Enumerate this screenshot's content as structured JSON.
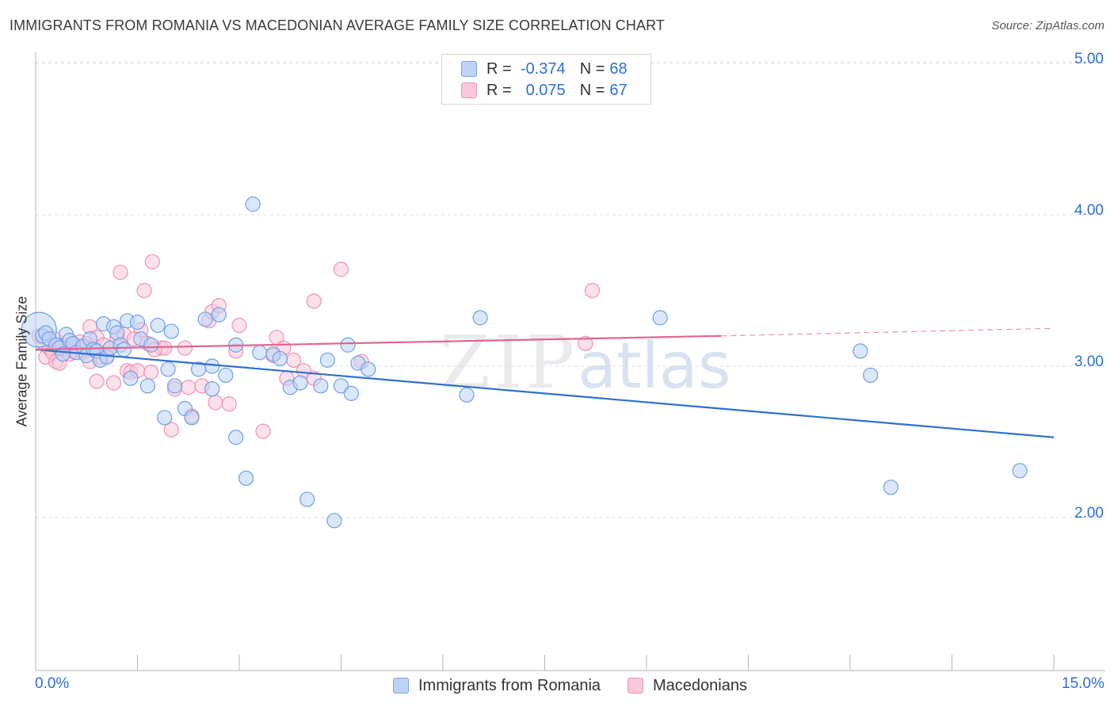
{
  "title": "IMMIGRANTS FROM ROMANIA VS MACEDONIAN AVERAGE FAMILY SIZE CORRELATION CHART",
  "source": "Source: ZipAtlas.com",
  "watermark": {
    "zip": "ZIP",
    "atlas": "atlas"
  },
  "legend": {
    "rows": [
      {
        "r_label": "R =",
        "r_value": "-0.374",
        "n_label": "N =",
        "n_value": "68"
      },
      {
        "r_label": "R =",
        "r_value": "0.075",
        "n_label": "N =",
        "n_value": "67"
      }
    ]
  },
  "bottom_legend": [
    "Immigrants from Romania",
    "Macedonians"
  ],
  "colors": {
    "blue_fill": "#bcd3f7",
    "blue_stroke": "#6f9fe6",
    "blue_line": "#2f6fd0",
    "pink_fill": "#f9c9d8",
    "pink_stroke": "#ef92b2",
    "pink_line": "#e2648f",
    "grid": "#dcdcdc",
    "axis_text": "#2f6fd0"
  },
  "chart_data": {
    "type": "scatter",
    "title": "IMMIGRANTS FROM ROMANIA VS MACEDONIAN AVERAGE FAMILY SIZE CORRELATION CHART",
    "xlabel": "",
    "ylabel": "Average Family Size",
    "xlim": [
      0,
      15
    ],
    "ylim": [
      1.0,
      5.15
    ],
    "x_tick_labels": [
      "0.0%",
      "15.0%"
    ],
    "y_ticks": [
      2.0,
      3.0,
      4.0,
      5.0
    ],
    "y_tick_labels": [
      "2.00",
      "3.00",
      "4.00",
      "5.00"
    ],
    "grid": true,
    "legend_position": "top-center",
    "series": [
      {
        "name": "Immigrants from Romania",
        "color": "#6f9fe6",
        "r": -0.374,
        "n": 68,
        "trend": {
          "x0": 0.0,
          "y0": 3.11,
          "x1": 15.0,
          "y1": 2.53,
          "dashed_from": null
        },
        "points": [
          {
            "x": 0.05,
            "y": 3.24,
            "big": true
          },
          {
            "x": 0.1,
            "y": 3.2
          },
          {
            "x": 0.15,
            "y": 3.22
          },
          {
            "x": 0.2,
            "y": 3.18
          },
          {
            "x": 0.3,
            "y": 3.14
          },
          {
            "x": 0.35,
            "y": 3.12
          },
          {
            "x": 0.45,
            "y": 3.21
          },
          {
            "x": 0.5,
            "y": 3.17
          },
          {
            "x": 0.55,
            "y": 3.15
          },
          {
            "x": 0.6,
            "y": 3.09
          },
          {
            "x": 0.7,
            "y": 3.13
          },
          {
            "x": 0.75,
            "y": 3.07
          },
          {
            "x": 0.8,
            "y": 3.18
          },
          {
            "x": 0.85,
            "y": 3.11
          },
          {
            "x": 0.9,
            "y": 3.1
          },
          {
            "x": 0.95,
            "y": 3.04
          },
          {
            "x": 1.0,
            "y": 3.28
          },
          {
            "x": 1.05,
            "y": 3.06
          },
          {
            "x": 1.1,
            "y": 3.12
          },
          {
            "x": 1.15,
            "y": 3.26
          },
          {
            "x": 1.2,
            "y": 3.22
          },
          {
            "x": 1.25,
            "y": 3.14
          },
          {
            "x": 1.35,
            "y": 3.3
          },
          {
            "x": 1.4,
            "y": 2.92
          },
          {
            "x": 1.5,
            "y": 3.29
          },
          {
            "x": 1.55,
            "y": 3.18
          },
          {
            "x": 1.65,
            "y": 2.87
          },
          {
            "x": 1.7,
            "y": 3.14
          },
          {
            "x": 1.8,
            "y": 3.27
          },
          {
            "x": 1.9,
            "y": 2.66
          },
          {
            "x": 1.95,
            "y": 2.98
          },
          {
            "x": 2.0,
            "y": 3.23
          },
          {
            "x": 2.05,
            "y": 2.87
          },
          {
            "x": 2.2,
            "y": 2.72
          },
          {
            "x": 2.3,
            "y": 2.66
          },
          {
            "x": 2.4,
            "y": 2.98
          },
          {
            "x": 2.5,
            "y": 3.31
          },
          {
            "x": 2.6,
            "y": 3.0
          },
          {
            "x": 2.6,
            "y": 2.85
          },
          {
            "x": 2.7,
            "y": 3.34
          },
          {
            "x": 2.8,
            "y": 2.94
          },
          {
            "x": 2.95,
            "y": 3.14
          },
          {
            "x": 2.95,
            "y": 2.53
          },
          {
            "x": 3.1,
            "y": 2.26
          },
          {
            "x": 3.2,
            "y": 4.07
          },
          {
            "x": 3.3,
            "y": 3.09
          },
          {
            "x": 3.5,
            "y": 3.08
          },
          {
            "x": 3.6,
            "y": 3.05
          },
          {
            "x": 3.75,
            "y": 2.86
          },
          {
            "x": 3.9,
            "y": 2.89
          },
          {
            "x": 4.0,
            "y": 2.12
          },
          {
            "x": 4.2,
            "y": 2.87
          },
          {
            "x": 4.3,
            "y": 3.04
          },
          {
            "x": 4.4,
            "y": 1.98
          },
          {
            "x": 4.5,
            "y": 2.87
          },
          {
            "x": 4.6,
            "y": 3.14
          },
          {
            "x": 4.65,
            "y": 2.82
          },
          {
            "x": 4.75,
            "y": 3.02
          },
          {
            "x": 4.9,
            "y": 2.98
          },
          {
            "x": 6.35,
            "y": 2.81
          },
          {
            "x": 6.55,
            "y": 3.32
          },
          {
            "x": 9.2,
            "y": 3.32
          },
          {
            "x": 12.15,
            "y": 3.1
          },
          {
            "x": 12.3,
            "y": 2.94
          },
          {
            "x": 12.6,
            "y": 2.2
          },
          {
            "x": 14.5,
            "y": 2.31
          },
          {
            "x": 0.4,
            "y": 3.08
          },
          {
            "x": 1.3,
            "y": 3.11
          }
        ]
      },
      {
        "name": "Macedonians",
        "color": "#ef92b2",
        "r": 0.075,
        "n": 67,
        "trend": {
          "x0": 0.0,
          "y0": 3.11,
          "x1": 10.1,
          "y1": 3.2,
          "x_dash_end": 15.0,
          "y_dash_end": 3.25
        },
        "points": [
          {
            "x": 0.05,
            "y": 3.2
          },
          {
            "x": 0.1,
            "y": 3.16
          },
          {
            "x": 0.15,
            "y": 3.06
          },
          {
            "x": 0.2,
            "y": 3.12
          },
          {
            "x": 0.25,
            "y": 3.09
          },
          {
            "x": 0.3,
            "y": 3.03
          },
          {
            "x": 0.35,
            "y": 3.02
          },
          {
            "x": 0.4,
            "y": 3.14
          },
          {
            "x": 0.45,
            "y": 3.11
          },
          {
            "x": 0.5,
            "y": 3.08
          },
          {
            "x": 0.55,
            "y": 3.1
          },
          {
            "x": 0.6,
            "y": 3.13
          },
          {
            "x": 0.7,
            "y": 3.09
          },
          {
            "x": 0.75,
            "y": 3.15
          },
          {
            "x": 0.8,
            "y": 3.03
          },
          {
            "x": 0.8,
            "y": 3.26
          },
          {
            "x": 0.85,
            "y": 3.13
          },
          {
            "x": 0.9,
            "y": 3.19
          },
          {
            "x": 0.9,
            "y": 2.9
          },
          {
            "x": 1.0,
            "y": 3.14
          },
          {
            "x": 1.05,
            "y": 3.07
          },
          {
            "x": 1.1,
            "y": 3.12
          },
          {
            "x": 1.15,
            "y": 2.89
          },
          {
            "x": 1.2,
            "y": 3.19
          },
          {
            "x": 1.25,
            "y": 3.62
          },
          {
            "x": 1.3,
            "y": 3.21
          },
          {
            "x": 1.35,
            "y": 2.97
          },
          {
            "x": 1.4,
            "y": 2.96
          },
          {
            "x": 1.5,
            "y": 2.97
          },
          {
            "x": 1.55,
            "y": 3.24
          },
          {
            "x": 1.6,
            "y": 3.5
          },
          {
            "x": 1.65,
            "y": 3.15
          },
          {
            "x": 1.7,
            "y": 2.96
          },
          {
            "x": 1.72,
            "y": 3.69
          },
          {
            "x": 1.85,
            "y": 3.12
          },
          {
            "x": 1.9,
            "y": 3.12
          },
          {
            "x": 2.0,
            "y": 2.58
          },
          {
            "x": 2.05,
            "y": 2.85
          },
          {
            "x": 2.2,
            "y": 3.12
          },
          {
            "x": 2.25,
            "y": 2.86
          },
          {
            "x": 2.3,
            "y": 2.67
          },
          {
            "x": 2.55,
            "y": 3.3
          },
          {
            "x": 2.6,
            "y": 3.36
          },
          {
            "x": 2.65,
            "y": 2.76
          },
          {
            "x": 2.7,
            "y": 3.4
          },
          {
            "x": 2.85,
            "y": 2.75
          },
          {
            "x": 3.0,
            "y": 3.27
          },
          {
            "x": 3.35,
            "y": 2.57
          },
          {
            "x": 3.5,
            "y": 3.07
          },
          {
            "x": 3.55,
            "y": 3.19
          },
          {
            "x": 3.65,
            "y": 3.12
          },
          {
            "x": 3.7,
            "y": 2.92
          },
          {
            "x": 3.95,
            "y": 2.97
          },
          {
            "x": 4.1,
            "y": 2.92
          },
          {
            "x": 4.1,
            "y": 3.43
          },
          {
            "x": 4.5,
            "y": 3.64
          },
          {
            "x": 4.8,
            "y": 3.03
          },
          {
            "x": 8.1,
            "y": 3.15
          },
          {
            "x": 8.2,
            "y": 3.5
          },
          {
            "x": 0.65,
            "y": 3.16
          },
          {
            "x": 1.45,
            "y": 3.18
          },
          {
            "x": 2.45,
            "y": 2.87
          },
          {
            "x": 0.95,
            "y": 3.06
          },
          {
            "x": 1.75,
            "y": 3.11
          },
          {
            "x": 0.28,
            "y": 3.18
          },
          {
            "x": 2.95,
            "y": 3.1
          },
          {
            "x": 3.8,
            "y": 3.04
          }
        ]
      }
    ]
  }
}
